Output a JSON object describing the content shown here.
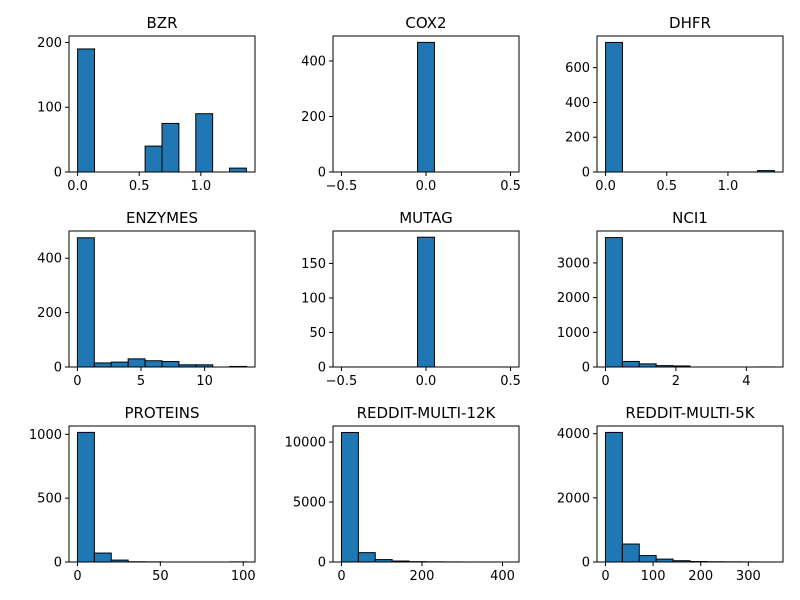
{
  "chart_data": [
    {
      "type": "bar",
      "title": "BZR",
      "bars": [
        {
          "x0": 0,
          "x1": 0.137,
          "v": 190
        },
        {
          "x0": 0.137,
          "x1": 0.274,
          "v": 0
        },
        {
          "x0": 0.274,
          "x1": 0.411,
          "v": 0
        },
        {
          "x0": 0.411,
          "x1": 0.548,
          "v": 0
        },
        {
          "x0": 0.548,
          "x1": 0.685,
          "v": 40
        },
        {
          "x0": 0.685,
          "x1": 0.822,
          "v": 75
        },
        {
          "x0": 0.822,
          "x1": 0.959,
          "v": 0
        },
        {
          "x0": 0.959,
          "x1": 1.096,
          "v": 90
        },
        {
          "x0": 1.096,
          "x1": 1.233,
          "v": 0
        },
        {
          "x0": 1.233,
          "x1": 1.37,
          "v": 6
        }
      ],
      "xlim": [
        -0.07,
        1.44
      ],
      "ylim": [
        0,
        210
      ],
      "xticks": [
        0,
        0.5,
        1.0
      ],
      "xtick_labels": [
        "0.0",
        "0.5",
        "1.0"
      ],
      "yticks": [
        0,
        100,
        200
      ],
      "ytick_labels": [
        "0",
        "100",
        "200"
      ]
    },
    {
      "type": "bar",
      "title": "COX2",
      "bars": [
        {
          "x0": -0.05,
          "x1": 0.05,
          "v": 467
        }
      ],
      "xlim": [
        -0.55,
        0.55
      ],
      "ylim": [
        0,
        490
      ],
      "xticks": [
        -0.5,
        0,
        0.5
      ],
      "xtick_labels": [
        "−0.5",
        "0.0",
        "0.5"
      ],
      "yticks": [
        0,
        200,
        400
      ],
      "ytick_labels": [
        "0",
        "200",
        "400"
      ]
    },
    {
      "type": "bar",
      "title": "DHFR",
      "bars": [
        {
          "x0": 0,
          "x1": 0.138,
          "v": 745
        },
        {
          "x0": 0.138,
          "x1": 0.276,
          "v": 0
        },
        {
          "x0": 0.276,
          "x1": 0.414,
          "v": 0
        },
        {
          "x0": 0.414,
          "x1": 0.552,
          "v": 0
        },
        {
          "x0": 0.552,
          "x1": 0.69,
          "v": 0
        },
        {
          "x0": 0.69,
          "x1": 0.828,
          "v": 0
        },
        {
          "x0": 0.828,
          "x1": 0.966,
          "v": 0
        },
        {
          "x0": 0.966,
          "x1": 1.104,
          "v": 0
        },
        {
          "x0": 1.104,
          "x1": 1.242,
          "v": 0
        },
        {
          "x0": 1.242,
          "x1": 1.38,
          "v": 8
        }
      ],
      "xlim": [
        -0.07,
        1.45
      ],
      "ylim": [
        0,
        782
      ],
      "xticks": [
        0,
        0.5,
        1.0
      ],
      "xtick_labels": [
        "0.0",
        "0.5",
        "1.0"
      ],
      "yticks": [
        0,
        200,
        400,
        600
      ],
      "ytick_labels": [
        "0",
        "200",
        "400",
        "600"
      ]
    },
    {
      "type": "bar",
      "title": "ENZYMES",
      "bars": [
        {
          "x0": 0,
          "x1": 1.33,
          "v": 475
        },
        {
          "x0": 1.33,
          "x1": 2.66,
          "v": 15
        },
        {
          "x0": 2.66,
          "x1": 3.99,
          "v": 18
        },
        {
          "x0": 3.99,
          "x1": 5.32,
          "v": 30
        },
        {
          "x0": 5.32,
          "x1": 6.65,
          "v": 23
        },
        {
          "x0": 6.65,
          "x1": 7.98,
          "v": 20
        },
        {
          "x0": 7.98,
          "x1": 9.31,
          "v": 8
        },
        {
          "x0": 9.31,
          "x1": 10.64,
          "v": 8
        },
        {
          "x0": 10.64,
          "x1": 11.97,
          "v": 0
        },
        {
          "x0": 11.97,
          "x1": 13.3,
          "v": 2
        }
      ],
      "xlim": [
        -0.66,
        13.96
      ],
      "ylim": [
        0,
        500
      ],
      "xticks": [
        0,
        5,
        10
      ],
      "xtick_labels": [
        "0",
        "5",
        "10"
      ],
      "yticks": [
        0,
        200,
        400
      ],
      "ytick_labels": [
        "0",
        "200",
        "400"
      ]
    },
    {
      "type": "bar",
      "title": "MUTAG",
      "bars": [
        {
          "x0": -0.05,
          "x1": 0.05,
          "v": 188
        }
      ],
      "xlim": [
        -0.55,
        0.55
      ],
      "ylim": [
        0,
        197
      ],
      "xticks": [
        -0.5,
        0,
        0.5
      ],
      "xtick_labels": [
        "−0.5",
        "0.0",
        "0.5"
      ],
      "yticks": [
        0,
        50,
        100,
        150
      ],
      "ytick_labels": [
        "0",
        "50",
        "100",
        "150"
      ]
    },
    {
      "type": "bar",
      "title": "NCI1",
      "bars": [
        {
          "x0": 0,
          "x1": 0.48,
          "v": 3730
        },
        {
          "x0": 0.48,
          "x1": 0.96,
          "v": 160
        },
        {
          "x0": 0.96,
          "x1": 1.44,
          "v": 90
        },
        {
          "x0": 1.44,
          "x1": 1.92,
          "v": 40
        },
        {
          "x0": 1.92,
          "x1": 2.4,
          "v": 30
        },
        {
          "x0": 2.4,
          "x1": 2.88,
          "v": 0
        },
        {
          "x0": 2.88,
          "x1": 3.36,
          "v": 0
        },
        {
          "x0": 3.36,
          "x1": 3.84,
          "v": 0
        },
        {
          "x0": 3.84,
          "x1": 4.32,
          "v": 0
        },
        {
          "x0": 4.32,
          "x1": 4.8,
          "v": 2
        }
      ],
      "xlim": [
        -0.24,
        5.04
      ],
      "ylim": [
        0,
        3920
      ],
      "xticks": [
        0,
        2,
        4
      ],
      "xtick_labels": [
        "0",
        "2",
        "4"
      ],
      "yticks": [
        0,
        1000,
        2000,
        3000
      ],
      "ytick_labels": [
        "0",
        "1000",
        "2000",
        "3000"
      ]
    },
    {
      "type": "bar",
      "title": "PROTEINS",
      "bars": [
        {
          "x0": 0,
          "x1": 10.2,
          "v": 1015
        },
        {
          "x0": 10.2,
          "x1": 20.4,
          "v": 70
        },
        {
          "x0": 20.4,
          "x1": 30.6,
          "v": 15
        },
        {
          "x0": 30.6,
          "x1": 40.8,
          "v": 2
        },
        {
          "x0": 40.8,
          "x1": 51,
          "v": 1
        },
        {
          "x0": 51,
          "x1": 61.2,
          "v": 0
        },
        {
          "x0": 61.2,
          "x1": 71.4,
          "v": 0
        },
        {
          "x0": 71.4,
          "x1": 81.6,
          "v": 0
        },
        {
          "x0": 81.6,
          "x1": 91.8,
          "v": 0
        },
        {
          "x0": 91.8,
          "x1": 102,
          "v": 1
        }
      ],
      "xlim": [
        -5.1,
        107.1
      ],
      "ylim": [
        0,
        1065
      ],
      "xticks": [
        0,
        50,
        100
      ],
      "xtick_labels": [
        "0",
        "50",
        "100"
      ],
      "yticks": [
        0,
        500,
        1000
      ],
      "ytick_labels": [
        "0",
        "500",
        "1000"
      ]
    },
    {
      "type": "bar",
      "title": "REDDIT-MULTI-12K",
      "bars": [
        {
          "x0": 0,
          "x1": 42,
          "v": 10800
        },
        {
          "x0": 42,
          "x1": 84,
          "v": 780
        },
        {
          "x0": 84,
          "x1": 126,
          "v": 200
        },
        {
          "x0": 126,
          "x1": 168,
          "v": 80
        },
        {
          "x0": 168,
          "x1": 210,
          "v": 30
        },
        {
          "x0": 210,
          "x1": 252,
          "v": 15
        },
        {
          "x0": 252,
          "x1": 294,
          "v": 8
        },
        {
          "x0": 294,
          "x1": 336,
          "v": 4
        },
        {
          "x0": 336,
          "x1": 378,
          "v": 2
        },
        {
          "x0": 378,
          "x1": 420,
          "v": 1
        }
      ],
      "xlim": [
        -21,
        441
      ],
      "ylim": [
        0,
        11340
      ],
      "xticks": [
        0,
        200,
        400
      ],
      "xtick_labels": [
        "0",
        "200",
        "400"
      ],
      "yticks": [
        0,
        5000,
        10000
      ],
      "ytick_labels": [
        "0",
        "5000",
        "10000"
      ]
    },
    {
      "type": "bar",
      "title": "REDDIT-MULTI-5K",
      "bars": [
        {
          "x0": 0,
          "x1": 35.5,
          "v": 4040
        },
        {
          "x0": 35.5,
          "x1": 71,
          "v": 560
        },
        {
          "x0": 71,
          "x1": 106.5,
          "v": 200
        },
        {
          "x0": 106.5,
          "x1": 142,
          "v": 90
        },
        {
          "x0": 142,
          "x1": 177.5,
          "v": 40
        },
        {
          "x0": 177.5,
          "x1": 213,
          "v": 15
        },
        {
          "x0": 213,
          "x1": 248.5,
          "v": 8
        },
        {
          "x0": 248.5,
          "x1": 284,
          "v": 5
        },
        {
          "x0": 284,
          "x1": 319.5,
          "v": 3
        },
        {
          "x0": 319.5,
          "x1": 355,
          "v": 1
        }
      ],
      "xlim": [
        -17.75,
        372.75
      ],
      "ylim": [
        0,
        4240
      ],
      "xticks": [
        0,
        100,
        200,
        300
      ],
      "xtick_labels": [
        "0",
        "100",
        "200",
        "300"
      ],
      "yticks": [
        0,
        2000,
        4000
      ],
      "ytick_labels": [
        "0",
        "2000",
        "4000"
      ]
    }
  ],
  "colors": {
    "bar_fill": "#1f77b4",
    "bar_edge": "#000000",
    "background": "#ffffff"
  }
}
